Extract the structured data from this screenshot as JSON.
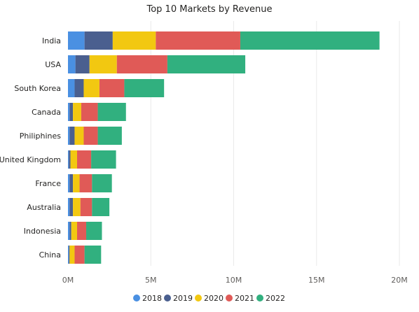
{
  "chart_data": {
    "type": "bar",
    "orientation": "horizontal",
    "stacked": true,
    "title": "Top 10 Markets by Revenue",
    "xlabel": "",
    "ylabel": "",
    "categories": [
      "India",
      "USA",
      "South Korea",
      "Canada",
      "Philiphines",
      "United Kingdom",
      "France",
      "Australia",
      "Indonesia",
      "China"
    ],
    "series": [
      {
        "name": "2018",
        "color": "#4a90e2",
        "values": [
          1.0,
          0.45,
          0.4,
          0.1,
          0.1,
          0.05,
          0.1,
          0.1,
          0.1,
          0.05
        ]
      },
      {
        "name": "2019",
        "color": "#4a5f8f",
        "values": [
          1.7,
          0.85,
          0.55,
          0.2,
          0.3,
          0.1,
          0.2,
          0.2,
          0.1,
          0.05
        ]
      },
      {
        "name": "2020",
        "color": "#f2c811",
        "values": [
          2.6,
          1.65,
          0.95,
          0.5,
          0.55,
          0.4,
          0.4,
          0.45,
          0.35,
          0.3
        ]
      },
      {
        "name": "2021",
        "color": "#e05a57",
        "values": [
          5.1,
          3.05,
          1.5,
          1.0,
          0.85,
          0.85,
          0.75,
          0.7,
          0.55,
          0.6
        ]
      },
      {
        "name": "2022",
        "color": "#31b07f",
        "values": [
          8.4,
          4.7,
          2.4,
          1.7,
          1.45,
          1.5,
          1.2,
          1.05,
          0.95,
          1.0
        ]
      }
    ],
    "xlim": [
      0,
      20000000
    ],
    "xticks": [
      {
        "value": 0,
        "label": "0M"
      },
      {
        "value": 5000000,
        "label": "5M"
      },
      {
        "value": 10000000,
        "label": "10M"
      },
      {
        "value": 15000000,
        "label": "15M"
      },
      {
        "value": 20000000,
        "label": "20M"
      }
    ],
    "value_unit_multiplier": 1000000,
    "grid": "vertical",
    "legend": {
      "position": "bottom",
      "marker": "circle"
    }
  }
}
